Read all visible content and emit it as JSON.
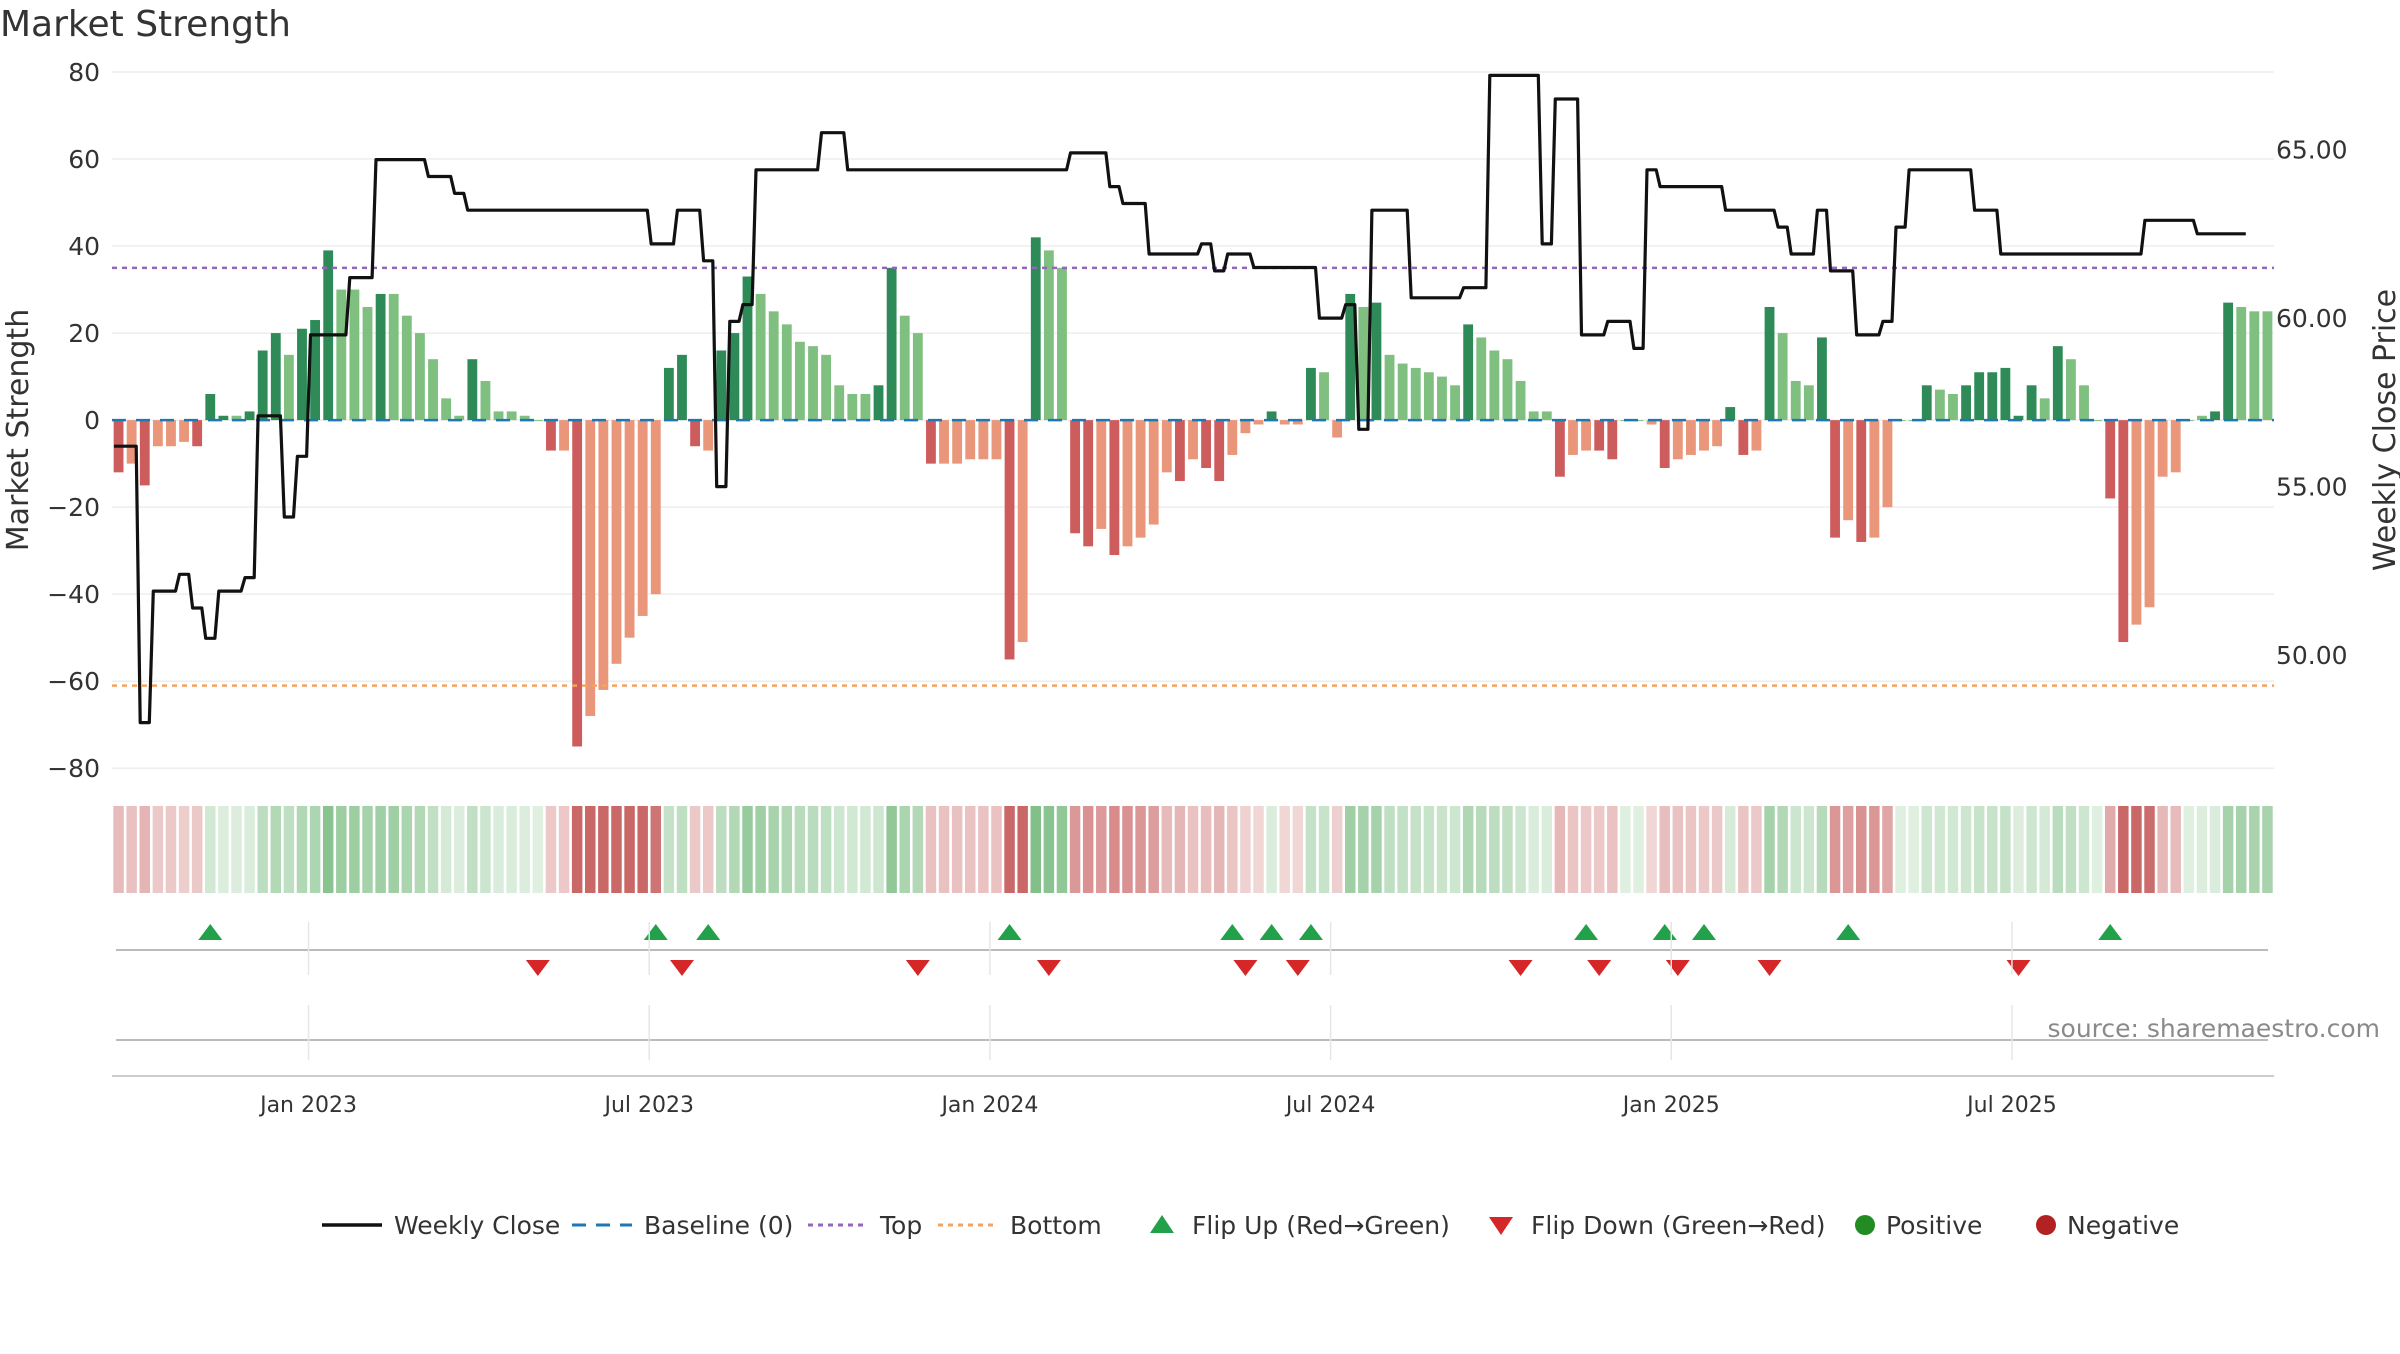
{
  "title": "Market Strength",
  "source": "source: sharemaestro.com",
  "chart_data": {
    "type": "bar",
    "title": "Market Strength",
    "ylabel": "Market Strength",
    "y2label": "Weekly Close Price",
    "ylim": [
      -85,
      80
    ],
    "y2lim": [
      46.0,
      67.3
    ],
    "yticks": [
      80,
      60,
      40,
      20,
      0,
      -20,
      -40,
      -60,
      -80
    ],
    "ytick_labels": [
      "80",
      "60",
      "40",
      "20",
      "0",
      "−20",
      "−40",
      "−60",
      "−80"
    ],
    "y2ticks": [
      65.0,
      60.0,
      55.0,
      50.0
    ],
    "y2tick_labels": [
      "65.00",
      "60.00",
      "55.00",
      "50.00"
    ],
    "xticks": [
      15,
      41,
      67,
      93,
      119,
      145
    ],
    "xtick_labels": [
      "Jan 2023",
      "Jul 2023",
      "Jan 2024",
      "Jul 2024",
      "Jan 2025",
      "Jul 2025"
    ],
    "top_threshold": 35,
    "bottom_threshold": -61,
    "grid": true,
    "legend_position": "bottom-center",
    "colors": {
      "strong_positive": "#2e8b57",
      "positive": "#7fbf7f",
      "strong_negative": "#cd5c5c",
      "negative": "#e9967a",
      "close": "#111111",
      "baseline": "#1f77b4",
      "top": "#9467bd",
      "bottom": "#f4a460",
      "flip_up": "#22a04a",
      "flip_down": "#d62728",
      "positive_marker": "#228b22",
      "negative_marker": "#b22222"
    },
    "series": [
      {
        "name": "Market Strength",
        "values": [
          -12,
          -10,
          -15,
          -6,
          -6,
          -5,
          -6,
          6,
          1,
          1,
          2,
          16,
          20,
          15,
          21,
          23,
          39,
          30,
          30,
          26,
          29,
          29,
          24,
          20,
          14,
          5,
          1,
          14,
          9,
          2,
          2,
          1,
          0,
          -7,
          -7,
          -75,
          -68,
          -62,
          -56,
          -50,
          -45,
          -40,
          12,
          15,
          -6,
          -7,
          16,
          20,
          33,
          29,
          25,
          22,
          18,
          17,
          15,
          8,
          6,
          6,
          8,
          35,
          24,
          20,
          -10,
          -10,
          -10,
          -9,
          -9,
          -9,
          -55,
          -51,
          42,
          39,
          35,
          -26,
          -29,
          -25,
          -31,
          -29,
          -27,
          -24,
          -12,
          -14,
          -9,
          -11,
          -14,
          -8,
          -3,
          -1,
          2,
          -1,
          -1,
          12,
          11,
          -4,
          29,
          26,
          27,
          15,
          13,
          12,
          11,
          10,
          8,
          22,
          19,
          16,
          14,
          9,
          2,
          2,
          -13,
          -8,
          -7,
          -7,
          -9,
          0,
          0,
          -1,
          -11,
          -9,
          -8,
          -7,
          -6,
          3,
          -8,
          -7,
          26,
          20,
          9,
          8,
          19,
          -27,
          -23,
          -28,
          -27,
          -20,
          0,
          0,
          8,
          7,
          6,
          8,
          11,
          11,
          12,
          1,
          8,
          5,
          17,
          14,
          8,
          0,
          -18,
          -51,
          -47,
          -43,
          -13,
          -12,
          0,
          1,
          2,
          27,
          26,
          25,
          25
        ],
        "strong": [
          1,
          0,
          1,
          0,
          0,
          0,
          1,
          1,
          1,
          0,
          1,
          1,
          1,
          0,
          1,
          1,
          1,
          0,
          0,
          0,
          1,
          0,
          0,
          0,
          0,
          0,
          0,
          1,
          0,
          0,
          0,
          0,
          0,
          1,
          0,
          1,
          0,
          0,
          0,
          0,
          0,
          0,
          1,
          1,
          1,
          0,
          1,
          1,
          1,
          0,
          0,
          0,
          0,
          0,
          0,
          0,
          0,
          0,
          1,
          1,
          0,
          0,
          1,
          0,
          0,
          0,
          0,
          0,
          1,
          0,
          1,
          0,
          0,
          1,
          1,
          0,
          1,
          0,
          0,
          0,
          0,
          1,
          0,
          1,
          1,
          0,
          0,
          0,
          1,
          0,
          0,
          1,
          0,
          0,
          1,
          0,
          1,
          0,
          0,
          0,
          0,
          0,
          0,
          1,
          0,
          0,
          0,
          0,
          0,
          0,
          1,
          0,
          0,
          1,
          1,
          0,
          0,
          0,
          1,
          0,
          0,
          0,
          0,
          1,
          1,
          0,
          1,
          0,
          0,
          0,
          1,
          1,
          0,
          1,
          0,
          0,
          0,
          0,
          1,
          0,
          0,
          1,
          1,
          1,
          1,
          1,
          1,
          0,
          1,
          0,
          0,
          0,
          1,
          1,
          0,
          0,
          0,
          0,
          0,
          0,
          1,
          1,
          0,
          0,
          0
        ]
      },
      {
        "name": "Weekly Close",
        "values": [
          56.2,
          56.2,
          48.0,
          51.9,
          51.9,
          52.4,
          51.4,
          50.5,
          51.9,
          51.9,
          52.3,
          57.1,
          57.1,
          54.1,
          55.9,
          59.5,
          59.5,
          59.5,
          61.2,
          61.2,
          64.7,
          64.7,
          64.7,
          64.7,
          64.2,
          64.2,
          63.7,
          63.2,
          63.2,
          63.2,
          63.2,
          63.2,
          63.2,
          63.2,
          63.2,
          63.2,
          63.2,
          63.2,
          63.2,
          63.2,
          63.2,
          62.2,
          62.2,
          63.2,
          63.2,
          61.7,
          55.0,
          59.9,
          60.4,
          64.4,
          64.4,
          64.4,
          64.4,
          64.4,
          65.5,
          65.5,
          64.4,
          64.4,
          64.4,
          64.4,
          64.4,
          64.4,
          64.4,
          64.4,
          64.4,
          64.4,
          64.4,
          64.4,
          64.4,
          64.4,
          64.4,
          64.4,
          64.4,
          64.9,
          64.9,
          64.9,
          63.9,
          63.4,
          63.4,
          61.9,
          61.9,
          61.9,
          61.9,
          62.2,
          61.4,
          61.9,
          61.9,
          61.5,
          61.5,
          61.5,
          61.5,
          61.5,
          60.0,
          60.0,
          60.4,
          56.7,
          63.2,
          63.2,
          63.2,
          60.6,
          60.6,
          60.6,
          60.6,
          60.9,
          60.9,
          67.2,
          67.2,
          67.2,
          67.2,
          62.2,
          66.5,
          66.5,
          59.5,
          59.5,
          59.9,
          59.9,
          59.1,
          64.4,
          63.9,
          63.9,
          63.9,
          63.9,
          63.9,
          63.2,
          63.2,
          63.2,
          63.2,
          62.7,
          61.9,
          61.9,
          63.2,
          61.4,
          61.4,
          59.5,
          59.5,
          59.9,
          62.7,
          64.4,
          64.4,
          64.4,
          64.4,
          64.4,
          63.2,
          63.2,
          61.9,
          61.9,
          61.9,
          61.9,
          61.9,
          61.9,
          61.9,
          61.9,
          61.9,
          61.9,
          61.9,
          62.9,
          62.9,
          62.9,
          62.9,
          62.5,
          62.5,
          62.5,
          62.5
        ]
      }
    ],
    "flip_up_weeks": [
      7,
      41,
      45,
      68,
      85,
      88,
      91,
      112,
      118,
      121,
      132,
      152
    ],
    "flip_down_weeks": [
      32,
      43,
      61,
      71,
      86,
      90,
      107,
      113,
      119,
      126,
      145
    ],
    "legend": [
      {
        "label": "Weekly Close",
        "kind": "line"
      },
      {
        "label": "Baseline (0)",
        "kind": "dash"
      },
      {
        "label": "Top",
        "kind": "dot-purple"
      },
      {
        "label": "Bottom",
        "kind": "dot-orange"
      },
      {
        "label": "Flip Up (Red→Green)",
        "kind": "tri-up"
      },
      {
        "label": "Flip Down (Green→Red)",
        "kind": "tri-down"
      },
      {
        "label": "Positive",
        "kind": "dot-green"
      },
      {
        "label": "Negative",
        "kind": "dot-red"
      }
    ]
  }
}
